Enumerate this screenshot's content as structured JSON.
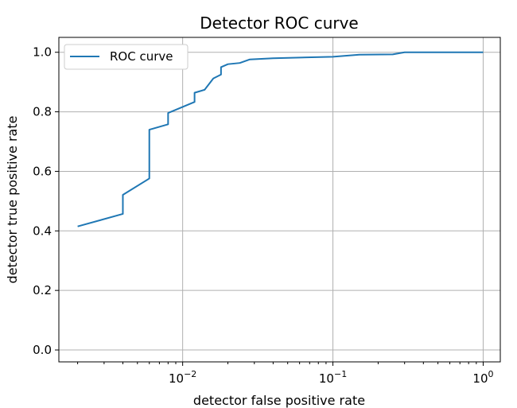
{
  "chart_data": {
    "type": "line",
    "title": "Detector ROC curve",
    "xlabel": "detector false positive rate",
    "ylabel": "detector true positive rate",
    "xscale": "log",
    "xlim": [
      0.0015,
      1.3
    ],
    "ylim": [
      -0.04,
      1.05
    ],
    "grid": true,
    "legend": {
      "position": "top-left",
      "entries": [
        "ROC curve"
      ]
    },
    "xticks": [
      {
        "value": 0.01,
        "base": "10",
        "exp": "−2"
      },
      {
        "value": 0.1,
        "base": "10",
        "exp": "−1"
      },
      {
        "value": 1,
        "base": "10",
        "exp": "0"
      }
    ],
    "yticks": [
      {
        "value": 0.0,
        "label": "0.0"
      },
      {
        "value": 0.2,
        "label": "0.2"
      },
      {
        "value": 0.4,
        "label": "0.4"
      },
      {
        "value": 0.6,
        "label": "0.6"
      },
      {
        "value": 0.8,
        "label": "0.8"
      },
      {
        "value": 1.0,
        "label": "1.0"
      }
    ],
    "series": [
      {
        "name": "ROC curve",
        "color": "#1f77b4",
        "points": [
          [
            0.002,
            0.415
          ],
          [
            0.004,
            0.457
          ],
          [
            0.004,
            0.521
          ],
          [
            0.006,
            0.576
          ],
          [
            0.006,
            0.74
          ],
          [
            0.008,
            0.758
          ],
          [
            0.008,
            0.796
          ],
          [
            0.012,
            0.833
          ],
          [
            0.012,
            0.864
          ],
          [
            0.014,
            0.874
          ],
          [
            0.016,
            0.912
          ],
          [
            0.018,
            0.925
          ],
          [
            0.018,
            0.95
          ],
          [
            0.02,
            0.96
          ],
          [
            0.024,
            0.964
          ],
          [
            0.028,
            0.976
          ],
          [
            0.04,
            0.98
          ],
          [
            0.1,
            0.985
          ],
          [
            0.15,
            0.992
          ],
          [
            0.25,
            0.993
          ],
          [
            0.3,
            1.0
          ],
          [
            1.0,
            1.0
          ]
        ]
      }
    ]
  }
}
